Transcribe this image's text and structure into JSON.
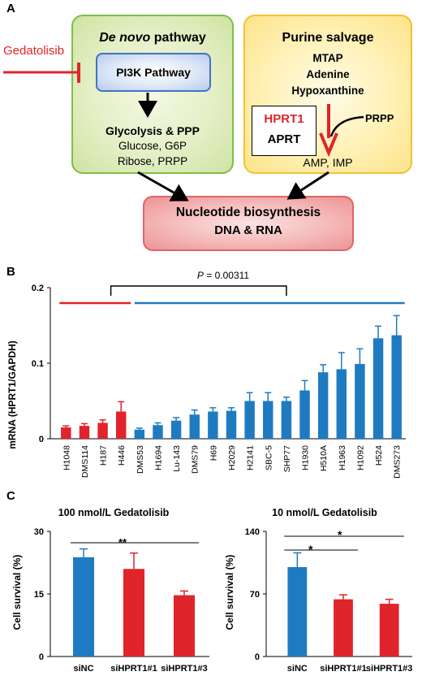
{
  "panel_a": {
    "letter": "A",
    "denovo_title_em": "De novo",
    "denovo_title_rest": " pathway",
    "inhibitor": "Gedatolisib",
    "pi3k": "PI3K Pathway",
    "glycolysis": "Glycolysis & PPP",
    "metab1": "Glucose, G6P",
    "metab2": "Ribose, PRPP",
    "salvage_title": "Purine salvage",
    "salvage_items": [
      "MTAP",
      "Adenine",
      "Hypoxanthine"
    ],
    "hprt1": "HPRT1",
    "aprt": "APRT",
    "prpp": "PRPP",
    "amp": "AMP, IMP",
    "nuc1": "Nucleotide biosynthesis",
    "nuc2": "DNA & RNA",
    "colors": {
      "inhibitor": "#e0242b",
      "green_border": "#7cbf4a",
      "yellow_border": "#f1c232",
      "blue_border": "#4472c4",
      "red_border": "#e06666"
    }
  },
  "panel_b": {
    "letter": "B",
    "ylabel": "mRNA (HPRT1/GAPDH)",
    "pvalue_prefix": "P",
    "pvalue_rest": " = 0.00311",
    "chart_data": {
      "type": "bar",
      "categories": [
        "H1048",
        "DMS114",
        "H187",
        "H446",
        "DMS53",
        "H1694",
        "Lu-143",
        "DMS79",
        "H69",
        "H2029",
        "H2141",
        "SBC-5",
        "SHP77",
        "H1930",
        "H510A",
        "H1963",
        "H1092",
        "H524",
        "DMS273"
      ],
      "values": [
        0.015,
        0.017,
        0.021,
        0.036,
        0.012,
        0.018,
        0.024,
        0.032,
        0.036,
        0.037,
        0.05,
        0.05,
        0.05,
        0.064,
        0.088,
        0.092,
        0.099,
        0.133,
        0.137
      ],
      "errors": [
        0.002,
        0.003,
        0.004,
        0.013,
        0.002,
        0.003,
        0.004,
        0.006,
        0.005,
        0.004,
        0.011,
        0.011,
        0.005,
        0.013,
        0.01,
        0.022,
        0.02,
        0.016,
        0.026
      ],
      "groups": [
        "red",
        "red",
        "red",
        "red",
        "blue",
        "blue",
        "blue",
        "blue",
        "blue",
        "blue",
        "blue",
        "blue",
        "blue",
        "blue",
        "blue",
        "blue",
        "blue",
        "blue",
        "blue"
      ],
      "ylim": [
        0,
        0.2
      ],
      "yticks": [
        0,
        0.1,
        0.2
      ],
      "ytick_labels": [
        "0",
        "0.1",
        "0.2"
      ],
      "colors": {
        "red": "#e0242b",
        "blue": "#1f7bc1"
      }
    }
  },
  "panel_c": {
    "letter": "C",
    "left": {
      "title": "100 nmol/L Gedatolisib",
      "ylabel": "Cell survival (%)",
      "sig": "**",
      "chart_data": {
        "type": "bar",
        "categories": [
          "siNC",
          "siHPRT1#1",
          "siHPRT1#3"
        ],
        "values": [
          23.8,
          21.0,
          14.7
        ],
        "errors": [
          2.0,
          3.8,
          1.0
        ],
        "ylim": [
          0,
          30
        ],
        "yticks": [
          0,
          15,
          30
        ],
        "ytick_labels": [
          "0",
          "15",
          "30"
        ],
        "bar_colors": [
          "#1f7bc1",
          "#e0242b",
          "#e0242b"
        ]
      }
    },
    "right": {
      "title": "10 nmol/L Gedatolisib",
      "ylabel": "Cell survival (%)",
      "sig1": "*",
      "sig2": "*",
      "chart_data": {
        "type": "bar",
        "categories": [
          "siNC",
          "siHPRT1#1",
          "siHPRT1#3"
        ],
        "values": [
          100,
          64,
          59
        ],
        "errors": [
          16,
          5,
          5
        ],
        "ylim": [
          0,
          140
        ],
        "yticks": [
          0,
          70,
          140
        ],
        "ytick_labels": [
          "0",
          "70",
          "140"
        ],
        "bar_colors": [
          "#1f7bc1",
          "#e0242b",
          "#e0242b"
        ]
      }
    }
  }
}
